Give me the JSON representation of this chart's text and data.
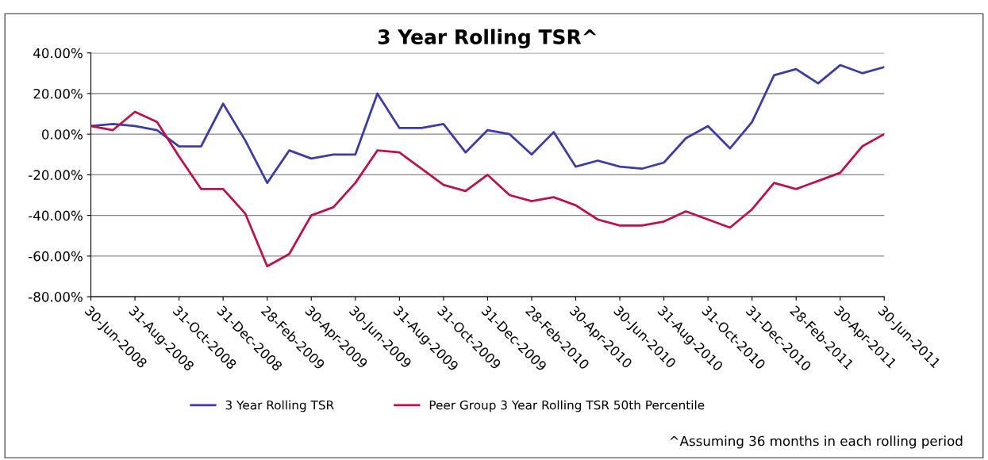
{
  "chart_data": {
    "type": "line",
    "title": "3 Year Rolling TSR^",
    "categories": [
      "30-Jun-2008",
      null,
      "31-Aug-2008",
      null,
      "31-Oct-2008",
      null,
      "31-Dec-2008",
      null,
      "28-Feb-2009",
      null,
      "30-Apr-2009",
      null,
      "30-Jun-2009",
      null,
      "31-Aug-2009",
      null,
      "31-Oct-2009",
      null,
      "31-Dec-2009",
      null,
      "28-Feb-2010",
      null,
      "30-Apr-2010",
      null,
      "30-Jun-2010",
      null,
      "31-Aug-2010",
      null,
      "31-Oct-2010",
      null,
      "31-Dec-2010",
      null,
      "28-Feb-2011",
      null,
      "30-Apr-2011",
      null,
      "30-Jun-2011"
    ],
    "series": [
      {
        "name": "3 Year Rolling TSR",
        "color": "#3c3ca8",
        "values": [
          4,
          5,
          4,
          2,
          -6,
          -6,
          15,
          -3,
          -24,
          -8,
          -12,
          -10,
          -10,
          20,
          3,
          3,
          5,
          -9,
          2,
          0,
          -10,
          1,
          -16,
          -13,
          -16,
          -17,
          -14,
          -2,
          4,
          -7,
          6,
          29,
          32,
          25,
          34,
          30,
          33
        ]
      },
      {
        "name": "Peer Group 3 Year Rolling TSR 50th Percentile",
        "color": "#c01048",
        "values": [
          4,
          2,
          11,
          6,
          -11,
          -27,
          -27,
          -39,
          -65,
          -59,
          -40,
          -36,
          -24,
          -8,
          -9,
          -17,
          -25,
          -28,
          -20,
          -30,
          -33,
          -31,
          -35,
          -42,
          -45,
          -45,
          -43,
          -38,
          -42,
          -46,
          -37,
          -24,
          -27,
          -23,
          -19,
          -6,
          0
        ]
      }
    ],
    "ylim": [
      -80,
      40
    ],
    "yticks": [
      {
        "value": -80,
        "label": "-80.00%"
      },
      {
        "value": -60,
        "label": "-60.00%"
      },
      {
        "value": -40,
        "label": "-40.00%"
      },
      {
        "value": -20,
        "label": "-20.00%"
      },
      {
        "value": 0,
        "label": "0.00%"
      },
      {
        "value": 20,
        "label": "20.00%"
      },
      {
        "value": 40,
        "label": "40.00%"
      }
    ],
    "grid": "y",
    "legend": "bottom",
    "marker": "none",
    "line_style": "solid",
    "annotations": [
      "^Assuming 36 months in each rolling period"
    ]
  }
}
